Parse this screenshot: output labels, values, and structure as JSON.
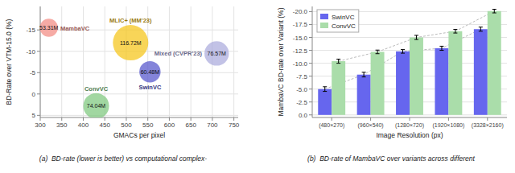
{
  "chart_data": [
    {
      "type": "bubble",
      "series": [
        {
          "name": "MambaVC",
          "color": "#f28b82",
          "x": [
            320
          ],
          "values": [
            -15.5
          ],
          "radius": [
            28
          ],
          "param_labels": [
            "53.31M"
          ]
        },
        {
          "name": "MLIC+ (MM'23)",
          "color": "#f5c518",
          "x": [
            510
          ],
          "values": [
            -12.0
          ],
          "radius": [
            55
          ],
          "param_labels": [
            "116.72M"
          ]
        },
        {
          "name": "ConvVC",
          "color": "#7dc87d",
          "x": [
            430
          ],
          "values": [
            2.8
          ],
          "radius": [
            40
          ],
          "param_labels": [
            "74.04M"
          ]
        },
        {
          "name": "SwinVC",
          "color": "#5555cc",
          "x": [
            555
          ],
          "values": [
            -5.2
          ],
          "radius": [
            33
          ],
          "param_labels": [
            "60.48M"
          ]
        },
        {
          "name": "Mixed (CVPR'23)",
          "color": "#aaaadd",
          "x": [
            710
          ],
          "values": [
            -9.5
          ],
          "radius": [
            38
          ],
          "param_labels": [
            "76.57M"
          ]
        }
      ],
      "xlabel": "GMACs per pixel",
      "ylabel": "BD-Rate over VTM-15.0 (%)",
      "xlim": [
        300,
        760
      ],
      "ylim": [
        5.5,
        -20.5
      ],
      "xticks": [
        300,
        350,
        400,
        450,
        500,
        550,
        600,
        650,
        700,
        750
      ],
      "yticks": [
        -15,
        -10,
        -5,
        0,
        5
      ],
      "grid": true,
      "caption": "(a)  BD-rate (lower is better) vs computational complex-"
    },
    {
      "type": "bar",
      "categories": [
        "(480×270)",
        "(960×540)",
        "(1280×720)",
        "(1920×1080)",
        "(3328×2160)"
      ],
      "series": [
        {
          "name": "SwinVC",
          "color": "#6666ee",
          "values": [
            -5.0,
            -7.8,
            -12.3,
            -12.9,
            -16.6
          ],
          "errors": [
            0.45,
            0.45,
            0.35,
            0.4,
            0.4
          ]
        },
        {
          "name": "ConvVC",
          "color": "#aaddaa",
          "values": [
            -10.4,
            -12.2,
            -15.0,
            -16.2,
            -20.1
          ],
          "errors": [
            0.4,
            0.35,
            0.4,
            0.35,
            0.35
          ]
        }
      ],
      "xlabel": "Image Resolution (px)",
      "ylabel": "MambaVC BD-rate over Variant (%)",
      "ylim": [
        0.5,
        -21.0
      ],
      "yticks": [
        {
          "value": 0,
          "label": "0.0"
        },
        -2.5,
        {
          "value": -5.0,
          "label": "-5.0"
        },
        -7.5,
        {
          "value": -10.0,
          "label": "-10.0"
        },
        -12.5,
        {
          "value": -15.0,
          "label": "-15.0"
        },
        -17.5,
        {
          "value": -20.0,
          "label": "-20.0"
        }
      ],
      "grid": "y",
      "legend": "upper left",
      "caption": "(b)  BD-rate of MambaVC over variants across different"
    }
  ]
}
